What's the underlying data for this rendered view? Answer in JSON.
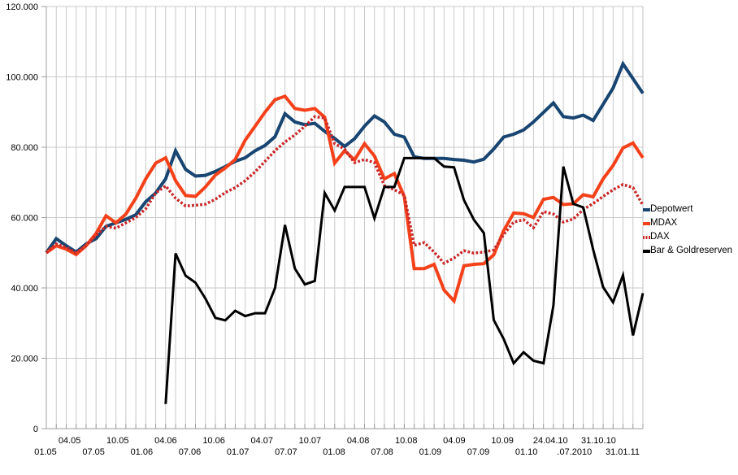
{
  "chart_data": {
    "type": "line",
    "title": "",
    "xlabel": "",
    "ylabel": "",
    "grid": true,
    "legend_position": "right",
    "y_axis": {
      "min": 0,
      "max": 120000,
      "tick_step": 20000,
      "ticks": [
        {
          "label": "120.000",
          "value": 120000
        },
        {
          "label": "100.000",
          "value": 100000
        },
        {
          "label": "80.000",
          "value": 80000
        },
        {
          "label": "60.000",
          "value": 60000
        },
        {
          "label": "40.000",
          "value": 40000
        },
        {
          "label": "20.000",
          "value": 20000
        },
        {
          "label": "0",
          "value": 0
        }
      ]
    },
    "x_axis": {
      "gridline_count": 61,
      "labels": [
        {
          "text": "01.05",
          "row": "lower"
        },
        {
          "text": "04.05",
          "row": "upper"
        },
        {
          "text": "07.05",
          "row": "lower"
        },
        {
          "text": "10.05",
          "row": "upper"
        },
        {
          "text": "01.06",
          "row": "lower"
        },
        {
          "text": "04.06",
          "row": "upper"
        },
        {
          "text": "07.06",
          "row": "lower"
        },
        {
          "text": "10.06",
          "row": "upper"
        },
        {
          "text": "01.07",
          "row": "lower"
        },
        {
          "text": "04.07",
          "row": "upper"
        },
        {
          "text": "07.07",
          "row": "lower"
        },
        {
          "text": "10.07",
          "row": "upper"
        },
        {
          "text": "01.08",
          "row": "lower"
        },
        {
          "text": "04.08",
          "row": "upper"
        },
        {
          "text": "07.08",
          "row": "lower"
        },
        {
          "text": "10.08",
          "row": "upper"
        },
        {
          "text": "01.09",
          "row": "lower"
        },
        {
          "text": "04.09",
          "row": "upper"
        },
        {
          "text": "07.09",
          "row": "lower"
        },
        {
          "text": "10.09",
          "row": "upper"
        },
        {
          "text": "01.10",
          "row": "lower"
        },
        {
          "text": "24.04.10",
          "row": "upper"
        },
        {
          "text": ".07.2010",
          "row": "lower"
        },
        {
          "text": "31.10.10",
          "row": "upper"
        },
        {
          "text": "31.01.11",
          "row": "lower"
        }
      ]
    },
    "colors": {
      "grid": "#c9c9c9",
      "axis": "#9e9e9e",
      "plot_border": "#c0c0c0",
      "text": "#000000"
    },
    "series": [
      {
        "name": "Depotwert",
        "color": "#184571",
        "style": "solid",
        "width": 4,
        "values": [
          50000,
          54000,
          52000,
          50200,
          52500,
          54000,
          57500,
          58500,
          59500,
          60800,
          64500,
          67000,
          71000,
          79000,
          73700,
          71800,
          72000,
          73100,
          74500,
          76000,
          77000,
          79000,
          80500,
          83000,
          89500,
          87200,
          86400,
          86800,
          84500,
          82500,
          80200,
          82400,
          86000,
          88900,
          87200,
          83700,
          82900,
          77300,
          76800,
          76800,
          76800,
          76500,
          76300,
          75800,
          76600,
          79500,
          82900,
          83700,
          84900,
          87200,
          89900,
          92600,
          88700,
          88300,
          89100,
          87600,
          92200,
          96800,
          103700,
          99500,
          95300
        ]
      },
      {
        "name": "MDAX",
        "color": "#f4411a",
        "style": "solid",
        "width": 4,
        "values": [
          50000,
          52000,
          51000,
          49500,
          52000,
          55500,
          60500,
          58500,
          61000,
          65500,
          71000,
          75500,
          77000,
          70500,
          66300,
          66000,
          68700,
          72100,
          74100,
          76500,
          82000,
          86000,
          90000,
          93500,
          94500,
          91000,
          90500,
          91000,
          88500,
          75500,
          79000,
          76400,
          81000,
          77500,
          71000,
          72500,
          66000,
          45500,
          45500,
          46700,
          39400,
          36300,
          46300,
          46700,
          46900,
          49400,
          56300,
          61300,
          61100,
          60000,
          65200,
          65700,
          63700,
          63900,
          66500,
          65900,
          71000,
          74800,
          79800,
          81200,
          77000
        ]
      },
      {
        "name": "DAX",
        "color": "#c9292b",
        "style": "dotted",
        "width": 3.5,
        "values": [
          50000,
          52500,
          51500,
          50000,
          52000,
          55000,
          57500,
          57000,
          58500,
          60000,
          62500,
          67000,
          69000,
          65500,
          63300,
          63500,
          63800,
          65200,
          67100,
          68500,
          70500,
          73000,
          76000,
          79000,
          81500,
          83500,
          86000,
          88700,
          88300,
          81000,
          79500,
          75600,
          76500,
          75600,
          69100,
          67900,
          66400,
          52100,
          52900,
          50200,
          47000,
          48500,
          50600,
          49900,
          50200,
          50800,
          55200,
          58700,
          59400,
          57100,
          61700,
          61000,
          58700,
          59600,
          62300,
          64000,
          66000,
          67900,
          69400,
          68500,
          63500
        ]
      },
      {
        "name": "Bar & Goldreserven",
        "color": "#000000",
        "style": "solid",
        "width": 3,
        "values": [
          null,
          null,
          null,
          null,
          null,
          null,
          null,
          null,
          null,
          null,
          null,
          null,
          7000,
          49800,
          43500,
          41500,
          37000,
          31500,
          30800,
          33500,
          32000,
          32800,
          32800,
          40000,
          57900,
          45500,
          41000,
          42000,
          67000,
          62000,
          68700,
          68700,
          68700,
          59800,
          68700,
          68700,
          76900,
          76900,
          76900,
          76900,
          74500,
          74300,
          65000,
          59400,
          55600,
          30900,
          25500,
          18600,
          21700,
          19300,
          18600,
          35000,
          74500,
          63900,
          62900,
          50900,
          40200,
          35900,
          43600,
          26500,
          38500
        ]
      }
    ]
  }
}
